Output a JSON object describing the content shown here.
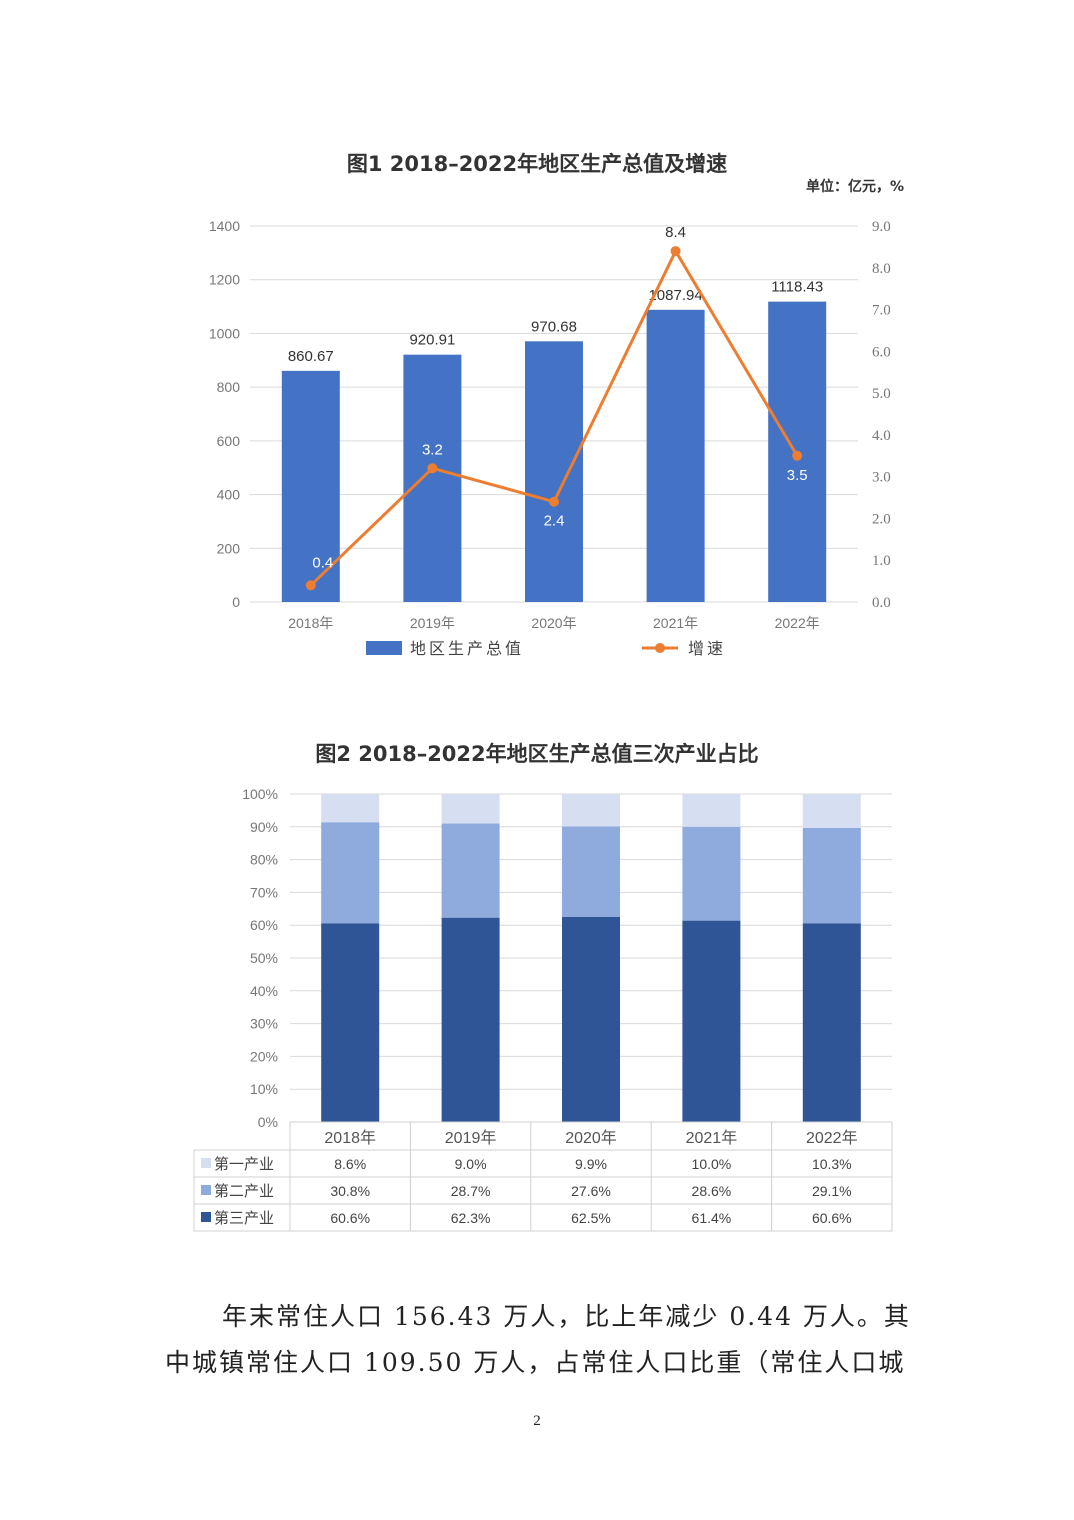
{
  "figure1": {
    "title": "图1  2018–2022年地区生产总值及增速",
    "unit": "单位：亿元，%",
    "chart_data": {
      "type": "bar",
      "categories": [
        "2018年",
        "2019年",
        "2020年",
        "2021年",
        "2022年"
      ],
      "series": [
        {
          "name": "地区生产总值",
          "type": "bar",
          "axis": "left",
          "values": [
            860.67,
            920.91,
            970.68,
            1087.94,
            1118.43
          ],
          "labels": [
            "860.67",
            "920.91",
            "970.68",
            "1087.94",
            "1118.43"
          ]
        },
        {
          "name": "增速",
          "type": "line",
          "axis": "right",
          "values": [
            0.4,
            3.2,
            2.4,
            8.4,
            3.5
          ],
          "labels": [
            "0.4",
            "3.2",
            "2.4",
            "8.4",
            "3.5"
          ]
        }
      ],
      "y_left": {
        "min": 0,
        "max": 1400,
        "ticks": [
          "0",
          "200",
          "400",
          "600",
          "800",
          "1000",
          "1200",
          "1400"
        ]
      },
      "y_right": {
        "min": 0,
        "max": 9,
        "ticks": [
          "0.0",
          "1.0",
          "2.0",
          "3.0",
          "4.0",
          "5.0",
          "6.0",
          "7.0",
          "8.0",
          "9.0"
        ]
      },
      "legend": "bottom",
      "colors": {
        "bar": "#4472C4",
        "line": "#ED7D31"
      }
    }
  },
  "figure2": {
    "title": "图2 2018–2022年地区生产总值三次产业占比",
    "chart_data": {
      "type": "bar",
      "stacked": true,
      "categories": [
        "2018年",
        "2019年",
        "2020年",
        "2021年",
        "2022年"
      ],
      "series": [
        {
          "name": "第一产业",
          "values": [
            8.6,
            9.0,
            9.9,
            10.0,
            10.3
          ],
          "labels": [
            "8.6%",
            "9.0%",
            "9.9%",
            "10.0%",
            "10.3%"
          ],
          "color": "#D6DFF2"
        },
        {
          "name": "第二产业",
          "values": [
            30.8,
            28.7,
            27.6,
            28.6,
            29.1
          ],
          "labels": [
            "30.8%",
            "28.7%",
            "27.6%",
            "28.6%",
            "29.1%"
          ],
          "color": "#8FAADC"
        },
        {
          "name": "第三产业",
          "values": [
            60.6,
            62.3,
            62.5,
            61.4,
            60.6
          ],
          "labels": [
            "60.6%",
            "62.3%",
            "62.5%",
            "61.4%",
            "60.6%"
          ],
          "color": "#2F5597"
        }
      ],
      "y": {
        "min": 0,
        "max": 100,
        "ticks": [
          "0%",
          "10%",
          "20%",
          "30%",
          "40%",
          "50%",
          "60%",
          "70%",
          "80%",
          "90%",
          "100%"
        ]
      },
      "data_table": true
    }
  },
  "paragraph": {
    "line1": "年末常住人口 156.43 万人，比上年减少 0.44 万人。其",
    "line2": "中城镇常住人口 109.50 万人，占常住人口比重（常住人口城"
  },
  "page_number": "2"
}
